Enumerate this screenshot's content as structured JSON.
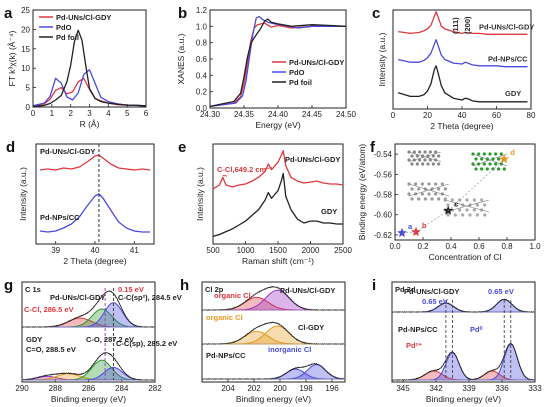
{
  "colors": {
    "red": "#e0383e",
    "black": "#222222",
    "blue": "#4a4ae0",
    "orange": "#e59a1e",
    "green": "#2a9a2a",
    "purple": "#9b2fc7",
    "gray": "#555555"
  },
  "chart_data": [
    {
      "id": "a",
      "label": "a",
      "type": "line",
      "xlabel": "R (Å)",
      "ylabel": "FT k³χ(k) (Å⁻⁴)",
      "xlim": [
        0,
        6
      ],
      "ylim": [
        0,
        25
      ],
      "xticks": [
        0,
        1,
        2,
        3,
        4,
        5,
        6
      ],
      "yticks": [
        0,
        5,
        10,
        15,
        20,
        25
      ],
      "legend": {
        "position": "top-left"
      },
      "series": [
        {
          "name": "Pd-UNs/Cl-GDY",
          "color": "#e0383e",
          "x": [
            0,
            0.6,
            0.9,
            1.2,
            1.5,
            1.8,
            2.1,
            2.4,
            2.7,
            3.0,
            3.3,
            3.6,
            4.0,
            4.5,
            5.0,
            5.5,
            6.0
          ],
          "y": [
            0.2,
            0.8,
            2.0,
            4.3,
            5.0,
            3.4,
            3.9,
            6.5,
            7.4,
            4.5,
            2.2,
            1.6,
            1.0,
            0.6,
            0.5,
            0.4,
            0.3
          ]
        },
        {
          "name": "PdO",
          "color": "#4a4ae0",
          "x": [
            0,
            0.6,
            0.9,
            1.2,
            1.5,
            1.8,
            2.1,
            2.4,
            2.7,
            3.0,
            3.3,
            3.6,
            4.0,
            4.5,
            5.0,
            5.5,
            6.0
          ],
          "y": [
            0.3,
            1.0,
            2.7,
            7.4,
            6.1,
            2.6,
            1.8,
            3.6,
            8.4,
            9.6,
            6.1,
            2.5,
            1.4,
            0.8,
            0.5,
            0.4,
            0.3
          ]
        },
        {
          "name": "Pd foil",
          "color": "#222222",
          "x": [
            0,
            0.6,
            0.9,
            1.2,
            1.5,
            1.8,
            2.0,
            2.2,
            2.4,
            2.6,
            2.8,
            3.0,
            3.3,
            3.6,
            4.0,
            4.5,
            5.0,
            5.5,
            6.0
          ],
          "y": [
            0.1,
            0.4,
            0.9,
            1.8,
            3.0,
            6.5,
            10.8,
            16.8,
            19.8,
            17.2,
            10.8,
            4.8,
            2.2,
            1.4,
            1.0,
            0.7,
            0.5,
            0.4,
            0.3
          ]
        }
      ]
    },
    {
      "id": "b",
      "label": "b",
      "type": "line",
      "xlabel": "Energy (eV)",
      "ylabel": "XANES (a.u.)",
      "xlim": [
        24.3,
        24.5
      ],
      "ylim": [
        0,
        1.2
      ],
      "xticks": [
        "24.30",
        "24.35",
        "24.40",
        "24.45",
        "24.50"
      ],
      "yticks": [
        "0.0",
        "0.2",
        "0.4",
        "0.6",
        "0.8",
        "1.0",
        "1.2"
      ],
      "legend": {
        "position": "bottom-right"
      },
      "series": [
        {
          "name": "Pd-UNs/Cl-GDY",
          "color": "#e0383e",
          "x": [
            24.3,
            24.335,
            24.345,
            24.35,
            24.355,
            24.36,
            24.365,
            24.37,
            24.375,
            24.38,
            24.39,
            24.4,
            24.42,
            24.45,
            24.5
          ],
          "y": [
            0.02,
            0.06,
            0.14,
            0.3,
            0.55,
            0.82,
            0.98,
            1.02,
            1.03,
            1.04,
            0.99,
            1.01,
            0.98,
            1.0,
            1.0
          ]
        },
        {
          "name": "PdO",
          "color": "#4a4ae0",
          "x": [
            24.3,
            24.338,
            24.348,
            24.353,
            24.358,
            24.363,
            24.368,
            24.372,
            24.378,
            24.385,
            24.395,
            24.41,
            24.43,
            24.45,
            24.5
          ],
          "y": [
            0.02,
            0.06,
            0.15,
            0.33,
            0.62,
            0.9,
            1.1,
            1.12,
            1.08,
            1.05,
            1.03,
            1.01,
            0.98,
            1.0,
            1.0
          ]
        },
        {
          "name": "Pd foil",
          "color": "#222222",
          "x": [
            24.3,
            24.335,
            24.345,
            24.35,
            24.355,
            24.36,
            24.365,
            24.37,
            24.375,
            24.38,
            24.385,
            24.39,
            24.4,
            24.42,
            24.45,
            24.5
          ],
          "y": [
            0.02,
            0.08,
            0.18,
            0.38,
            0.62,
            0.79,
            0.86,
            0.92,
            0.98,
            1.06,
            1.09,
            1.05,
            1.03,
            1.0,
            1.02,
            1.0
          ]
        }
      ]
    },
    {
      "id": "c",
      "label": "c",
      "type": "line",
      "xlabel": "2 Theta (degree)",
      "ylabel": "Intensity (a.u.)",
      "xlim": [
        0,
        80
      ],
      "xticks": [
        0,
        20,
        40,
        60,
        80
      ],
      "annotations": [
        "(111)",
        "(200)"
      ],
      "series": [
        {
          "name": "Pd-UNs/Cl-GDY",
          "color": "#e0383e",
          "x": [
            3,
            10,
            15,
            18,
            20,
            22,
            24,
            25,
            26,
            28,
            30,
            35,
            40,
            42,
            46,
            50,
            55,
            60,
            65,
            70,
            75,
            78
          ],
          "y": [
            0.86,
            0.84,
            0.85,
            0.87,
            0.89,
            0.93,
            1.03,
            1.08,
            1.03,
            0.92,
            0.89,
            0.86,
            0.84,
            0.85,
            0.84,
            0.84,
            0.83,
            0.83,
            0.83,
            0.83,
            0.83,
            0.83
          ]
        },
        {
          "name": "Pd-NPs/CC",
          "color": "#4a4ae0",
          "x": [
            3,
            10,
            15,
            18,
            20,
            22,
            24,
            25,
            26,
            28,
            30,
            35,
            40,
            42,
            46,
            50,
            55,
            60,
            65,
            70,
            75,
            78
          ],
          "y": [
            0.55,
            0.52,
            0.52,
            0.54,
            0.57,
            0.62,
            0.72,
            0.77,
            0.71,
            0.6,
            0.55,
            0.51,
            0.5,
            0.52,
            0.49,
            0.48,
            0.48,
            0.48,
            0.47,
            0.47,
            0.47,
            0.47
          ]
        },
        {
          "name": "GDY",
          "color": "#222222",
          "x": [
            3,
            10,
            15,
            18,
            20,
            22,
            24,
            25,
            26,
            28,
            30,
            35,
            40,
            42,
            44,
            46,
            50,
            55,
            60,
            65,
            70,
            75,
            78
          ],
          "y": [
            0.18,
            0.14,
            0.14,
            0.16,
            0.2,
            0.28,
            0.44,
            0.48,
            0.41,
            0.26,
            0.18,
            0.12,
            0.1,
            0.12,
            0.11,
            0.09,
            0.08,
            0.08,
            0.08,
            0.08,
            0.08,
            0.08,
            0.08
          ]
        }
      ]
    },
    {
      "id": "d",
      "label": "d",
      "type": "line",
      "xlabel": "2 Theta (degree)",
      "ylabel": "Intensity (a.u.)",
      "xlim": [
        38.5,
        41.5
      ],
      "xticks": [
        39,
        40,
        41
      ],
      "series": [
        {
          "name": "Pd-UNs/Cl-GDY",
          "color": "#e0383e",
          "x": [
            38.6,
            38.8,
            39.0,
            39.2,
            39.4,
            39.6,
            39.8,
            40.0,
            40.1,
            40.2,
            40.4,
            40.6,
            40.8,
            41.0,
            41.2,
            41.4
          ],
          "y": [
            0.74,
            0.75,
            0.74,
            0.76,
            0.75,
            0.77,
            0.82,
            0.88,
            0.89,
            0.86,
            0.8,
            0.76,
            0.75,
            0.74,
            0.75,
            0.74
          ]
        },
        {
          "name": "Pd-NPs/CC",
          "color": "#4a4ae0",
          "x": [
            38.6,
            38.8,
            39.0,
            39.2,
            39.4,
            39.6,
            39.8,
            40.0,
            40.1,
            40.2,
            40.4,
            40.6,
            40.8,
            41.0,
            41.2,
            41.4
          ],
          "y": [
            0.13,
            0.12,
            0.13,
            0.16,
            0.2,
            0.27,
            0.38,
            0.48,
            0.5,
            0.46,
            0.34,
            0.22,
            0.16,
            0.13,
            0.12,
            0.12
          ]
        }
      ]
    },
    {
      "id": "e",
      "label": "e",
      "type": "line",
      "xlabel": "Raman shift (cm⁻¹)",
      "ylabel": "Intensity (a.u.)",
      "xlim": [
        500,
        2500
      ],
      "xticks": [
        500,
        1000,
        1500,
        2000,
        2500
      ],
      "annotations": [
        "C-Cl,649.2 cm⁻¹"
      ],
      "series": [
        {
          "name": "Pd-UNs/Cl-GDY",
          "color": "#e0383e",
          "x": [
            500,
            600,
            649,
            700,
            800,
            900,
            1000,
            1100,
            1200,
            1300,
            1350,
            1400,
            1450,
            1500,
            1550,
            1580,
            1620,
            1700,
            1800,
            1900,
            2000,
            2100,
            2200,
            2300,
            2400,
            2500
          ],
          "y": [
            0.58,
            0.62,
            0.7,
            0.62,
            0.6,
            0.62,
            0.63,
            0.66,
            0.7,
            0.76,
            0.84,
            0.78,
            0.82,
            0.86,
            0.93,
            0.98,
            0.82,
            0.7,
            0.66,
            0.64,
            0.65,
            0.66,
            0.64,
            0.63,
            0.63,
            0.62
          ]
        },
        {
          "name": "GDY",
          "color": "#222222",
          "x": [
            500,
            600,
            700,
            800,
            900,
            1000,
            1100,
            1200,
            1300,
            1350,
            1400,
            1450,
            1500,
            1550,
            1580,
            1620,
            1700,
            1800,
            1900,
            2000,
            2100,
            2200,
            2300,
            2400,
            2500
          ],
          "y": [
            0.08,
            0.1,
            0.13,
            0.16,
            0.2,
            0.24,
            0.3,
            0.36,
            0.46,
            0.54,
            0.48,
            0.52,
            0.56,
            0.66,
            0.74,
            0.5,
            0.36,
            0.26,
            0.22,
            0.24,
            0.24,
            0.22,
            0.22,
            0.21,
            0.21
          ]
        }
      ]
    },
    {
      "id": "f",
      "label": "f",
      "type": "scatter",
      "xlabel": "Concentration of Cl",
      "ylabel": "Binding energy (eV/atom)",
      "xlim": [
        0,
        1.0
      ],
      "ylim": [
        -0.625,
        -0.53
      ],
      "xticks": [
        "0.0",
        "0.2",
        "0.4",
        "0.6",
        "0.8",
        "1.0"
      ],
      "yticks": [
        "-0.54",
        "-0.56",
        "-0.58",
        "-0.60",
        "-0.62"
      ],
      "points": [
        {
          "label": "a",
          "x": 0.05,
          "y": -0.618,
          "color": "#4a4ae0"
        },
        {
          "label": "b",
          "x": 0.15,
          "y": -0.617,
          "color": "#e0383e"
        },
        {
          "label": "c",
          "x": 0.38,
          "y": -0.596,
          "color": "#222222"
        },
        {
          "label": "d",
          "x": 0.78,
          "y": -0.545,
          "color": "#e59a1e"
        }
      ]
    },
    {
      "id": "g",
      "label": "g",
      "type": "line",
      "title": "C 1s",
      "xlabel": "Binding energy (eV)",
      "xlim": [
        290,
        282
      ],
      "xticks": [
        290,
        288,
        286,
        284,
        282
      ],
      "annotations": [
        "Pd-UNs/Cl-GDY",
        "0.15 eV",
        "C-Cl, 286.5 eV",
        "C-C(sp²), 284.5 eV",
        "GDY",
        "C=O, 288.5 eV",
        "C-O, 287.2 eV",
        "C-C(sp), 285.2 eV"
      ],
      "series": [
        {
          "name": "Pd-UNs/Cl-GDY",
          "color": "#222222",
          "peaks": [
            {
              "center": 286.5,
              "height": 0.1,
              "width": 0.7
            },
            {
              "center": 285.2,
              "height": 0.2,
              "width": 0.6
            },
            {
              "center": 284.5,
              "height": 0.27,
              "width": 0.55
            }
          ]
        },
        {
          "name": "GDY",
          "color": "#222222",
          "peaks": [
            {
              "center": 288.5,
              "height": 0.04,
              "width": 0.6
            },
            {
              "center": 287.2,
              "height": 0.07,
              "width": 0.7
            },
            {
              "center": 285.2,
              "height": 0.22,
              "width": 0.6
            },
            {
              "center": 284.5,
              "height": 0.14,
              "width": 0.55
            }
          ]
        }
      ]
    },
    {
      "id": "h",
      "label": "h",
      "type": "line",
      "title": "Cl 2p",
      "xlabel": "Binding energy (eV)",
      "xlim": [
        206,
        195
      ],
      "xticks": [
        204,
        202,
        200,
        198,
        196
      ],
      "annotations": [
        "organic Cl",
        "Pd-UNs/Cl-GDY",
        "organic Cl",
        "Cl-GDY",
        "Pd-NPs/CC",
        "inorganic Cl"
      ],
      "series": [
        {
          "name": "Pd-UNs/Cl-GDY",
          "color": "#222222",
          "peaks": [
            {
              "center": 201.8,
              "height": 0.14,
              "width": 0.9
            },
            {
              "center": 200.2,
              "height": 0.22,
              "width": 0.9
            }
          ]
        },
        {
          "name": "Cl-GDY",
          "color": "#222222",
          "peaks": [
            {
              "center": 201.8,
              "height": 0.14,
              "width": 0.9
            },
            {
              "center": 200.2,
              "height": 0.2,
              "width": 0.9
            }
          ]
        },
        {
          "name": "Pd-NPs/CC",
          "color": "#222222",
          "peaks": [
            {
              "center": 198.8,
              "height": 0.11,
              "width": 0.7
            },
            {
              "center": 197.2,
              "height": 0.16,
              "width": 0.7
            }
          ]
        }
      ]
    },
    {
      "id": "i",
      "label": "i",
      "type": "line",
      "title": "Pd 3d",
      "xlabel": "Binding energy (eV)",
      "xlim": [
        346,
        333
      ],
      "xticks": [
        345,
        342,
        339,
        336,
        333
      ],
      "annotations": [
        "Pd-UNs/Cl-GDY",
        "0.65 eV",
        "0.65 eV",
        "Pd-NPs/CC",
        "Pd²⁺",
        "Pd⁰"
      ],
      "series": [
        {
          "name": "Pd-UNs/Cl-GDY",
          "color": "#222222",
          "peaks": [
            {
              "center": 341.1,
              "height": 0.1,
              "width": 0.7
            },
            {
              "center": 335.8,
              "height": 0.14,
              "width": 0.7
            }
          ]
        },
        {
          "name": "Pd-NPs/CC",
          "color": "#222222",
          "peaks": [
            {
              "center": 342.2,
              "height": 0.1,
              "width": 0.8
            },
            {
              "center": 340.5,
              "height": 0.3,
              "width": 0.6
            },
            {
              "center": 336.9,
              "height": 0.1,
              "width": 0.7
            },
            {
              "center": 335.2,
              "height": 0.4,
              "width": 0.6
            }
          ]
        }
      ]
    }
  ]
}
